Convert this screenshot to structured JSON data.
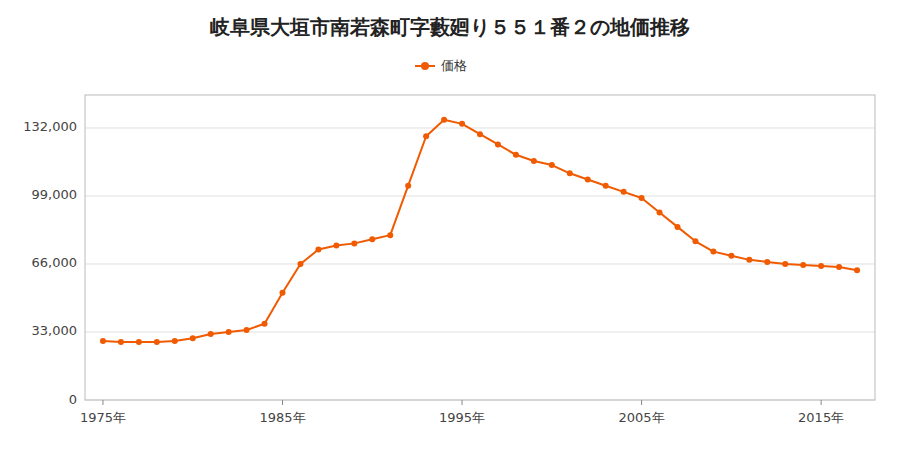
{
  "chart_data": {
    "type": "line",
    "title": "岐阜県大垣市南若森町字藪廻り５５１番２の地価推移",
    "x": [
      1975,
      1976,
      1977,
      1978,
      1979,
      1980,
      1981,
      1982,
      1983,
      1984,
      1985,
      1986,
      1987,
      1988,
      1989,
      1990,
      1991,
      1992,
      1993,
      1994,
      1995,
      1996,
      1997,
      1998,
      1999,
      2000,
      2001,
      2002,
      2003,
      2004,
      2005,
      2006,
      2007,
      2008,
      2009,
      2010,
      2011,
      2012,
      2013,
      2014,
      2015,
      2016,
      2017
    ],
    "series": [
      {
        "name": "価格",
        "color": "#f05a00",
        "marker": "circle",
        "values": [
          28600,
          28200,
          28200,
          28200,
          28600,
          30000,
          32000,
          33000,
          34000,
          37000,
          52000,
          66000,
          73000,
          75000,
          76000,
          78000,
          80000,
          104000,
          128000,
          136000,
          134000,
          129000,
          124000,
          119000,
          116000,
          114000,
          110000,
          107000,
          104000,
          101000,
          98000,
          91000,
          84000,
          77000,
          72000,
          70000,
          68000,
          67000,
          66000,
          65500,
          65000,
          64500,
          63000
        ]
      }
    ],
    "xlim": [
      1974,
      2018
    ],
    "xticks": [
      {
        "value": 1975,
        "label": "1975年"
      },
      {
        "value": 1985,
        "label": "1985年"
      },
      {
        "value": 1995,
        "label": "1995年"
      },
      {
        "value": 2005,
        "label": "2005年"
      },
      {
        "value": 2015,
        "label": "2015年"
      }
    ],
    "ylim": [
      0,
      148000
    ],
    "yticks": [
      0,
      {
        "value": 33000,
        "label": "33,000"
      },
      {
        "value": 66000,
        "label": "66,000"
      },
      {
        "value": 99000,
        "label": "99,000"
      },
      {
        "value": 132000,
        "label": "132,000"
      }
    ],
    "grid": true,
    "legend": "top"
  }
}
